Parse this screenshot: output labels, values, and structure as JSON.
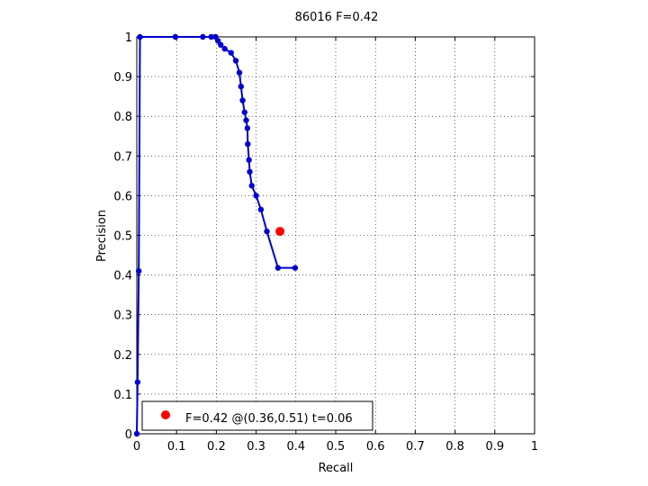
{
  "figure": {
    "background": "#ffffff"
  },
  "chart_data": {
    "type": "line",
    "title": "86016 F=0.42",
    "xlabel": "Recall",
    "ylabel": "Precision",
    "xlim": [
      0,
      1
    ],
    "ylim": [
      0,
      1
    ],
    "grid": true,
    "grid_style": "dotted",
    "x_ticks": [
      0,
      0.1,
      0.2,
      0.3,
      0.4,
      0.5,
      0.6,
      0.7,
      0.8,
      0.9,
      1
    ],
    "x_tick_labels": [
      "0",
      "0.1",
      "0.2",
      "0.3",
      "0.4",
      "0.5",
      "0.6",
      "0.7",
      "0.8",
      "0.9",
      "1"
    ],
    "y_ticks": [
      0,
      0.1,
      0.2,
      0.3,
      0.4,
      0.5,
      0.6,
      0.7,
      0.8,
      0.9,
      1
    ],
    "y_tick_labels": [
      "0",
      "0.1",
      "0.2",
      "0.3",
      "0.4",
      "0.5",
      "0.6",
      "0.7",
      "0.8",
      "0.9",
      "1"
    ],
    "series": [
      {
        "color": "#0000cc",
        "marker": "circle",
        "x": [
          0.0,
          0.002,
          0.005,
          0.008,
          0.097,
          0.166,
          0.187,
          0.198,
          0.204,
          0.211,
          0.221,
          0.237,
          0.249,
          0.258,
          0.262,
          0.266,
          0.271,
          0.275,
          0.278,
          0.279,
          0.282,
          0.284,
          0.289,
          0.3,
          0.312,
          0.327,
          0.355,
          0.398
        ],
        "y": [
          0.0,
          0.13,
          0.41,
          1.0,
          1.0,
          1.0,
          1.0,
          1.0,
          0.99,
          0.98,
          0.97,
          0.96,
          0.94,
          0.91,
          0.875,
          0.84,
          0.81,
          0.79,
          0.77,
          0.73,
          0.69,
          0.66,
          0.625,
          0.6,
          0.565,
          0.51,
          0.418,
          0.418
        ]
      }
    ],
    "highlight": {
      "x": 0.36,
      "y": 0.51,
      "color": "#ff0000"
    },
    "legend": {
      "position": "bottom-left",
      "entries": [
        {
          "label": "F=0.42 @(0.36,0.51) t=0.06",
          "color": "#ff0000",
          "marker": "circle"
        }
      ]
    }
  }
}
